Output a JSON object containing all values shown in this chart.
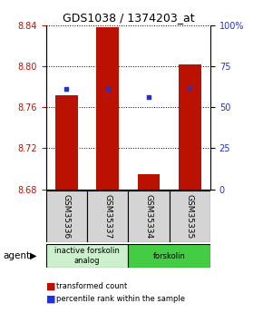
{
  "title": "GDS1038 / 1374203_at",
  "samples": [
    "GSM35336",
    "GSM35337",
    "GSM35334",
    "GSM35335"
  ],
  "bar_values": [
    8.772,
    8.838,
    8.695,
    8.802
  ],
  "bar_bottom": 8.68,
  "percentile_values": [
    8.778,
    8.778,
    8.77,
    8.779
  ],
  "ylim_left": [
    8.68,
    8.84
  ],
  "ylim_right": [
    0,
    100
  ],
  "yticks_left": [
    8.68,
    8.72,
    8.76,
    8.8,
    8.84
  ],
  "yticks_right": [
    0,
    25,
    50,
    75,
    100
  ],
  "ytick_labels_right": [
    "0",
    "25",
    "50",
    "75",
    "100%"
  ],
  "bar_color": "#bb1100",
  "percentile_color": "#2233cc",
  "agent_groups": [
    {
      "label": "inactive forskolin\nanalog",
      "samples": [
        0,
        1
      ],
      "color": "#ccf0cc"
    },
    {
      "label": "forskolin",
      "samples": [
        2,
        3
      ],
      "color": "#44cc44"
    }
  ],
  "legend_red_label": "transformed count",
  "legend_blue_label": "percentile rank within the sample",
  "agent_label": "agent",
  "bar_width": 0.55
}
